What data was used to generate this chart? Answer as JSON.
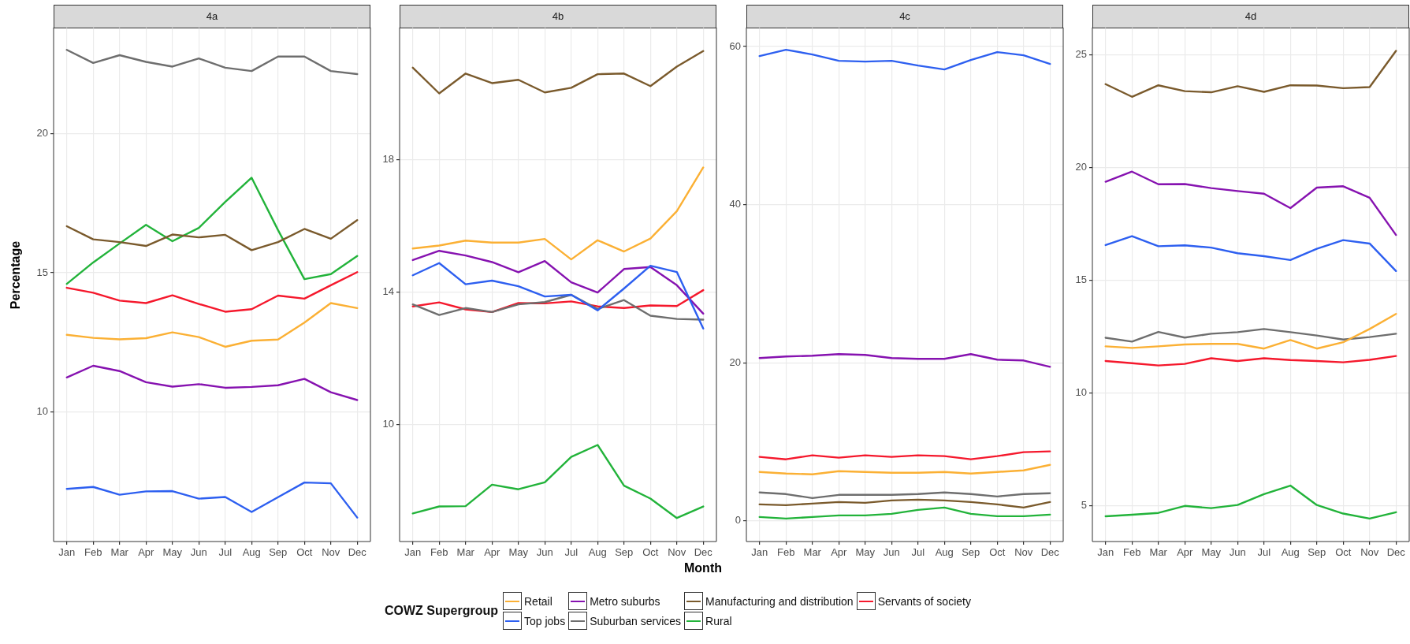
{
  "chart_data": [
    {
      "type": "line",
      "title": "4a",
      "ylabel": "Percentage",
      "legend_title": "COWZ Supergroup",
      "legend": "bottom",
      "grid": true,
      "marker": "none",
      "categories": [
        "Jan",
        "Feb",
        "Mar",
        "Apr",
        "May",
        "Jun",
        "Jul",
        "Aug",
        "Sep",
        "Oct",
        "Nov",
        "Dec"
      ],
      "ylim": [
        5.35,
        23.8
      ],
      "yticks": [
        10,
        15,
        20
      ],
      "series": [
        {
          "name": "Retail",
          "color": "#fbb034",
          "values": [
            12.77,
            12.66,
            12.61,
            12.65,
            12.86,
            12.69,
            12.34,
            12.56,
            12.6,
            13.21,
            13.91,
            13.73
          ]
        },
        {
          "name": "Top jobs",
          "color": "#2d5ff0",
          "values": [
            7.24,
            7.31,
            7.03,
            7.15,
            7.16,
            6.89,
            6.95,
            6.41,
            6.94,
            7.47,
            7.44,
            6.21
          ]
        },
        {
          "name": "Metro suburbs",
          "color": "#8612b0",
          "values": [
            11.24,
            11.66,
            11.47,
            11.07,
            10.91,
            11.0,
            10.87,
            10.9,
            10.96,
            11.19,
            10.71,
            10.43
          ]
        },
        {
          "name": "Suburban services",
          "color": "#6e6e6e",
          "values": [
            23.0,
            22.53,
            22.81,
            22.57,
            22.4,
            22.69,
            22.36,
            22.24,
            22.76,
            22.76,
            22.24,
            22.13
          ]
        },
        {
          "name": "Manufacturing and distribution",
          "color": "#7a5a2c",
          "values": [
            16.67,
            16.2,
            16.1,
            15.96,
            16.37,
            16.27,
            16.36,
            15.81,
            16.1,
            16.57,
            16.22,
            16.89
          ]
        },
        {
          "name": "Rural",
          "color": "#22b33a",
          "values": [
            14.6,
            15.37,
            16.05,
            16.72,
            16.13,
            16.61,
            17.54,
            18.41,
            16.53,
            14.77,
            14.95,
            15.6
          ]
        },
        {
          "name": "Servants of society",
          "color": "#f5182c",
          "values": [
            14.46,
            14.28,
            14.0,
            13.91,
            14.19,
            13.88,
            13.6,
            13.69,
            14.18,
            14.07,
            14.55,
            15.02
          ]
        }
      ]
    },
    {
      "type": "line",
      "title": "4b",
      "xlabel": "Month",
      "grid": true,
      "marker": "none",
      "categories": [
        "Jan",
        "Feb",
        "Mar",
        "Apr",
        "May",
        "Jun",
        "Jul",
        "Aug",
        "Sep",
        "Oct",
        "Nov",
        "Dec"
      ],
      "ylim": [
        6.46,
        22.0
      ],
      "yticks": [
        10,
        14,
        18
      ],
      "series": [
        {
          "color": "#fbb034",
          "values": [
            15.32,
            15.41,
            15.56,
            15.5,
            15.5,
            15.61,
            14.99,
            15.57,
            15.23,
            15.62,
            16.45,
            17.77
          ]
        },
        {
          "color": "#2d5ff0",
          "values": [
            14.51,
            14.88,
            14.24,
            14.35,
            14.18,
            13.87,
            13.92,
            13.45,
            14.11,
            14.8,
            14.61,
            12.9
          ]
        },
        {
          "color": "#8612b0",
          "values": [
            14.97,
            15.25,
            15.11,
            14.91,
            14.6,
            14.94,
            14.3,
            13.99,
            14.7,
            14.76,
            14.21,
            13.35
          ]
        },
        {
          "color": "#6e6e6e",
          "values": [
            13.63,
            13.31,
            13.52,
            13.4,
            13.63,
            13.7,
            13.92,
            13.49,
            13.76,
            13.29,
            13.19,
            13.17
          ]
        },
        {
          "color": "#7a5a2c",
          "values": [
            20.79,
            20.01,
            20.61,
            20.32,
            20.42,
            20.04,
            20.18,
            20.59,
            20.61,
            20.23,
            20.82,
            21.29
          ]
        },
        {
          "color": "#22b33a",
          "values": [
            7.31,
            7.52,
            7.53,
            8.18,
            8.04,
            8.25,
            9.02,
            9.38,
            8.15,
            7.76,
            7.17,
            7.52
          ]
        },
        {
          "color": "#f5182c",
          "values": [
            13.57,
            13.69,
            13.48,
            13.4,
            13.67,
            13.66,
            13.72,
            13.57,
            13.52,
            13.6,
            13.58,
            14.06
          ]
        }
      ]
    },
    {
      "type": "line",
      "title": "4c",
      "grid": true,
      "marker": "none",
      "categories": [
        "Jan",
        "Feb",
        "Mar",
        "Apr",
        "May",
        "Jun",
        "Jul",
        "Aug",
        "Sep",
        "Oct",
        "Nov",
        "Dec"
      ],
      "ylim": [
        -2.6,
        62.4
      ],
      "yticks": [
        0,
        20,
        40,
        60
      ],
      "series": [
        {
          "color": "#fbb034",
          "values": [
            6.2,
            6.0,
            5.9,
            6.3,
            6.2,
            6.1,
            6.1,
            6.2,
            6.0,
            6.2,
            6.4,
            7.1
          ]
        },
        {
          "color": "#2d5ff0",
          "values": [
            58.8,
            59.6,
            59.0,
            58.2,
            58.1,
            58.2,
            57.6,
            57.1,
            58.3,
            59.3,
            58.9,
            57.8
          ]
        },
        {
          "color": "#8612b0",
          "values": [
            20.6,
            20.8,
            20.9,
            21.1,
            21.0,
            20.6,
            20.5,
            20.5,
            21.1,
            20.4,
            20.3,
            19.5
          ]
        },
        {
          "color": "#6e6e6e",
          "values": [
            3.6,
            3.4,
            2.9,
            3.3,
            3.3,
            3.3,
            3.4,
            3.6,
            3.4,
            3.1,
            3.4,
            3.5
          ]
        },
        {
          "color": "#7a5a2c",
          "values": [
            2.1,
            2.0,
            2.2,
            2.4,
            2.3,
            2.6,
            2.7,
            2.6,
            2.4,
            2.1,
            1.7,
            2.4
          ]
        },
        {
          "color": "#22b33a",
          "values": [
            0.5,
            0.3,
            0.5,
            0.7,
            0.7,
            0.9,
            1.4,
            1.7,
            0.9,
            0.6,
            0.6,
            0.8
          ]
        },
        {
          "color": "#f5182c",
          "values": [
            8.1,
            7.8,
            8.3,
            8.0,
            8.3,
            8.1,
            8.3,
            8.2,
            7.8,
            8.2,
            8.7,
            8.8
          ]
        }
      ]
    },
    {
      "type": "line",
      "title": "4d",
      "grid": true,
      "marker": "none",
      "categories": [
        "Jan",
        "Feb",
        "Mar",
        "Apr",
        "May",
        "Jun",
        "Jul",
        "Aug",
        "Sep",
        "Oct",
        "Nov",
        "Dec"
      ],
      "ylim": [
        3.4,
        26.2
      ],
      "yticks": [
        5,
        10,
        15,
        20,
        25
      ],
      "series": [
        {
          "color": "#fbb034",
          "values": [
            12.06,
            11.99,
            12.06,
            12.14,
            12.17,
            12.17,
            11.96,
            12.34,
            11.96,
            12.24,
            12.83,
            13.5
          ]
        },
        {
          "color": "#2d5ff0",
          "values": [
            16.55,
            16.95,
            16.5,
            16.54,
            16.44,
            16.19,
            16.06,
            15.89,
            16.39,
            16.77,
            16.62,
            15.4
          ]
        },
        {
          "color": "#8612b0",
          "values": [
            19.36,
            19.81,
            19.25,
            19.26,
            19.08,
            18.95,
            18.83,
            18.19,
            19.1,
            19.16,
            18.65,
            17.0
          ]
        },
        {
          "color": "#6e6e6e",
          "values": [
            12.44,
            12.27,
            12.7,
            12.45,
            12.62,
            12.69,
            12.83,
            12.69,
            12.54,
            12.36,
            12.47,
            12.62
          ]
        },
        {
          "color": "#7a5a2c",
          "values": [
            23.69,
            23.13,
            23.64,
            23.38,
            23.33,
            23.6,
            23.35,
            23.64,
            23.63,
            23.51,
            23.56,
            25.17
          ]
        },
        {
          "color": "#22b33a",
          "values": [
            4.52,
            4.59,
            4.67,
            4.98,
            4.88,
            5.02,
            5.5,
            5.88,
            5.02,
            4.64,
            4.42,
            4.7
          ]
        },
        {
          "color": "#f5182c",
          "values": [
            11.41,
            11.31,
            11.21,
            11.28,
            11.53,
            11.41,
            11.53,
            11.45,
            11.41,
            11.35,
            11.46,
            11.63
          ]
        }
      ]
    }
  ]
}
